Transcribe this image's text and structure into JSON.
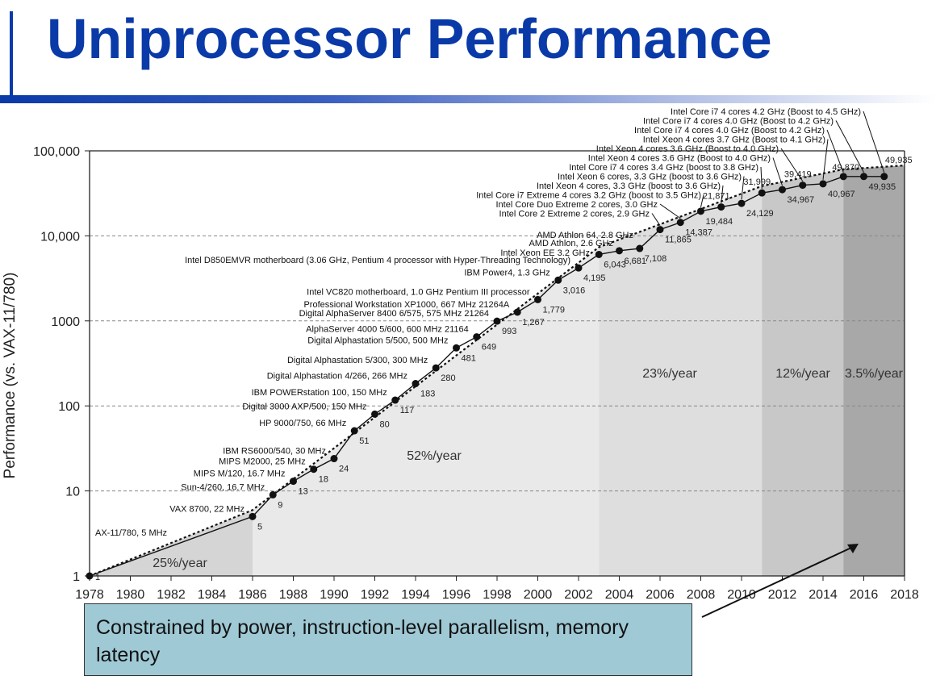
{
  "slide": {
    "title": "Uniprocessor Performance",
    "callout": "Constrained by power, instruction-level parallelism, memory latency"
  },
  "colors": {
    "title": "#0a3aa8",
    "callout_bg": "#9fc9d5",
    "region_25": "#d5d5d5",
    "region_52": "#e9e9e9",
    "region_23": "#dedede",
    "region_12": "#c8c8c8",
    "region_3_5": "#a8a8a8"
  },
  "chart_data": {
    "type": "line",
    "ylabel": "Performance (vs. VAX-11/780)",
    "xlabel": "",
    "y_scale": "log",
    "xlim": [
      1978,
      2018
    ],
    "ylim": [
      1,
      100000
    ],
    "x_ticks": [
      "1978",
      "1980",
      "1982",
      "1984",
      "1986",
      "1988",
      "1990",
      "1992",
      "1994",
      "1996",
      "1998",
      "2000",
      "2002",
      "2004",
      "2006",
      "2008",
      "2010",
      "2012",
      "2014",
      "2016",
      "2018"
    ],
    "y_ticks": [
      {
        "value": 1,
        "label": "1"
      },
      {
        "value": 10,
        "label": "10"
      },
      {
        "value": 100,
        "label": "100"
      },
      {
        "value": 1000,
        "label": "1000"
      },
      {
        "value": 10000,
        "label": "10,000"
      },
      {
        "value": 100000,
        "label": "100,000"
      }
    ],
    "regions": [
      {
        "from": 1978,
        "to": 1986,
        "label": "25%/year",
        "color": "#d5d5d5",
        "rate": 1.25
      },
      {
        "from": 1986,
        "to": 2003,
        "label": "52%/year",
        "color": "#e9e9e9",
        "rate": 1.52
      },
      {
        "from": 2003,
        "to": 2011,
        "label": "23%/year",
        "color": "#dedede",
        "rate": 1.23
      },
      {
        "from": 2011,
        "to": 2015,
        "label": "12%/year",
        "color": "#c8c8c8",
        "rate": 1.12
      },
      {
        "from": 2015,
        "to": 2018,
        "label": "3.5%/year",
        "color": "#a8a8a8",
        "rate": 1.035
      }
    ],
    "series": [
      {
        "points": [
          {
            "x": 1978,
            "y": 1,
            "label": "1",
            "name": "AX-11/780, 5 MHz"
          },
          {
            "x": 1986,
            "y": 5,
            "label": "5",
            "name": "VAX 8700, 22 MHz"
          },
          {
            "x": 1987,
            "y": 9,
            "label": "9",
            "name": "Sun-4/260, 16.7 MHz"
          },
          {
            "x": 1988,
            "y": 13,
            "label": "13",
            "name": "MIPS M/120, 16.7 MHz"
          },
          {
            "x": 1989,
            "y": 18,
            "label": "18",
            "name": "MIPS M2000, 25 MHz"
          },
          {
            "x": 1990,
            "y": 24,
            "label": "24",
            "name": "IBM RS6000/540, 30 MHz"
          },
          {
            "x": 1991,
            "y": 51,
            "label": "51",
            "name": "HP 9000/750, 66 MHz"
          },
          {
            "x": 1992,
            "y": 80,
            "label": "80",
            "name": "Digital 3000 AXP/500, 150 MHz"
          },
          {
            "x": 1993,
            "y": 117,
            "label": "117",
            "name": "IBM POWERstation 100, 150 MHz"
          },
          {
            "x": 1994,
            "y": 183,
            "label": "183",
            "name": "Digital Alphastation 4/266, 266 MHz"
          },
          {
            "x": 1995,
            "y": 280,
            "label": "280",
            "name": "Digital Alphastation 5/300, 300 MHz"
          },
          {
            "x": 1996,
            "y": 481,
            "label": "481",
            "name": "Digital Alphastation 5/500, 500 MHz"
          },
          {
            "x": 1997,
            "y": 649,
            "label": "649",
            "name": "AlphaServer 4000 5/600, 600 MHz 21164"
          },
          {
            "x": 1998,
            "y": 993,
            "label": "993",
            "name": "Digital AlphaServer 8400 6/575, 575 MHz 21264"
          },
          {
            "x": 1999,
            "y": 1267,
            "label": "1,267",
            "name": "Professional Workstation XP1000, 667 MHz 21264A"
          },
          {
            "x": 2000,
            "y": 1779,
            "label": "1,779",
            "name": "Intel VC820 motherboard, 1.0 GHz Pentium III processor"
          },
          {
            "x": 2001,
            "y": 3016,
            "label": "3,016",
            "name": "IBM Power4, 1.3 GHz"
          },
          {
            "x": 2002,
            "y": 4195,
            "label": "4,195",
            "name": "Intel D850EMVR motherboard (3.06 GHz, Pentium 4 processor with Hyper-Threading Technology)"
          },
          {
            "x": 2003,
            "y": 6043,
            "label": "6,043",
            "name": "Intel Xeon EE 3.2 GHz"
          },
          {
            "x": 2004,
            "y": 6681,
            "label": "6,681",
            "name": "AMD Athlon, 2.6 GHz"
          },
          {
            "x": 2005,
            "y": 7108,
            "label": "7,108",
            "name": "AMD Athlon 64, 2.8 GHz"
          },
          {
            "x": 2006,
            "y": 11865,
            "label": "11,865",
            "name": "Intel Core 2 Extreme 2 cores, 2.9 GHz"
          },
          {
            "x": 2007,
            "y": 14387,
            "label": "14,387",
            "name": "Intel Core Duo Extreme 2 cores, 3.0 GHz"
          },
          {
            "x": 2008,
            "y": 19484,
            "label": "19,484",
            "name": "Intel Core i7 Extreme 4 cores 3.2 GHz (boost to 3.5 GHz)"
          },
          {
            "x": 2009,
            "y": 21871,
            "label": "21,871",
            "name": "Intel Xeon 4 cores, 3.3 GHz (boost to 3.6 GHz)"
          },
          {
            "x": 2010,
            "y": 24129,
            "label": "24,129",
            "name": "Intel Xeon 6 cores, 3.3 GHz (boost to 3.6 GHz)"
          },
          {
            "x": 2011,
            "y": 31999,
            "label": "31,999",
            "name": "Intel Core i7 4 cores 3.4 GHz (boost to 3.8 GHz)"
          },
          {
            "x": 2012,
            "y": 34967,
            "label": "34,967",
            "name": "Intel Xeon 4 cores 3.6 GHz (Boost to 4.0 GHz)"
          },
          {
            "x": 2013,
            "y": 39419,
            "label": "39,419",
            "name": "Intel Xeon 4 cores 3.6 GHz (Boost to 4.0 GHz)"
          },
          {
            "x": 2014,
            "y": 40967,
            "label": "40,967",
            "name": "Intel Xeon 4 cores 3.7 GHz (Boost to 4.1 GHz)"
          },
          {
            "x": 2015,
            "y": 49870,
            "label": "49,870",
            "name": "Intel Core i7 4 cores 4.0 GHz (Boost to 4.2 GHz)"
          },
          {
            "x": 2016,
            "y": 49935,
            "label": "49,935",
            "name": "Intel Core i7 4 cores 4.0 GHz (Boost to 4.2 GHz)"
          },
          {
            "x": 2017,
            "y": 49935,
            "label": "49,935",
            "name": "Intel Core i7 4 cores 4.2 GHz (Boost to 4.5 GHz)"
          }
        ]
      }
    ]
  }
}
